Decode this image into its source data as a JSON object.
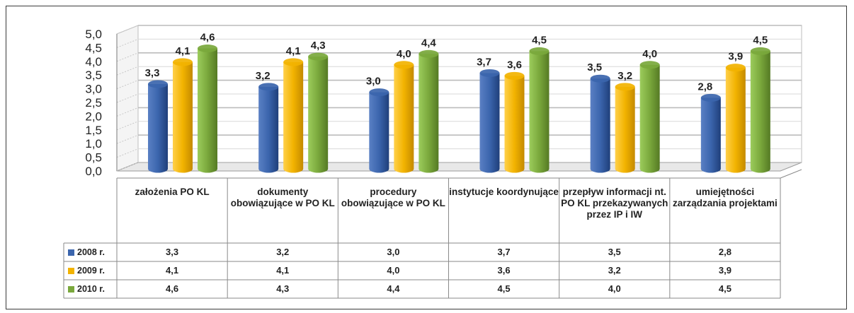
{
  "chart_data": {
    "type": "bar",
    "categories": [
      "założenia PO KL",
      "dokumenty obowiązujące w PO KL",
      "procedury obowiązujące w PO KL",
      "instytucje koordynujące",
      "przepływ informacji nt. PO KL przekazywanych przez IP i IW",
      "umiejętności zarządzania projektami"
    ],
    "series": [
      {
        "name": "2008 r.",
        "color": "#3b65ad",
        "values": [
          3.3,
          3.2,
          3.0,
          3.7,
          3.5,
          2.8
        ],
        "labels": [
          "3,3",
          "3,2",
          "3,0",
          "3,7",
          "3,5",
          "2,8"
        ]
      },
      {
        "name": "2009 r.",
        "color": "#f2b300",
        "values": [
          4.1,
          4.1,
          4.0,
          3.6,
          3.2,
          3.9
        ],
        "labels": [
          "4,1",
          "4,1",
          "4,0",
          "3,6",
          "3,2",
          "3,9"
        ]
      },
      {
        "name": "2010 r.",
        "color": "#7aa83c",
        "values": [
          4.6,
          4.3,
          4.4,
          4.5,
          4.0,
          4.5
        ],
        "labels": [
          "4,6",
          "4,3",
          "4,4",
          "4,5",
          "4,0",
          "4,5"
        ]
      }
    ],
    "y_ticks": [
      "0,0",
      "0,5",
      "1,0",
      "1,5",
      "2,0",
      "2,5",
      "3,0",
      "3,5",
      "4,0",
      "4,5",
      "5,0"
    ],
    "ylim": [
      0,
      5
    ],
    "grid": true,
    "legend": "data-table",
    "title": "",
    "xlabel": "",
    "ylabel": ""
  }
}
